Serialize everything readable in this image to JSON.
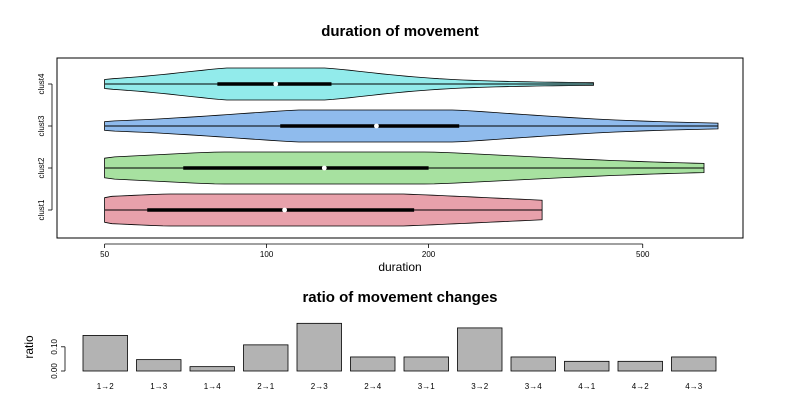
{
  "chart_data": [
    {
      "type": "violin",
      "title": "duration of movement",
      "xlabel": "duration",
      "ylabel": "",
      "xscale": "log",
      "xlim": [
        45,
        690
      ],
      "xticks": [
        50,
        100,
        200,
        500
      ],
      "grid": false,
      "categories": [
        "clust1",
        "clust2",
        "clust3",
        "clust4"
      ],
      "colors": [
        "#e8a1ab",
        "#a7e1a0",
        "#8fbbed",
        "#92ebeb"
      ],
      "series": [
        {
          "name": "clust1",
          "min": 50,
          "q1": 60,
          "median": 108,
          "q3": 188,
          "max": 325
        },
        {
          "name": "clust2",
          "min": 50,
          "q1": 70,
          "median": 128,
          "q3": 200,
          "max": 650
        },
        {
          "name": "clust3",
          "min": 50,
          "q1": 106,
          "median": 160,
          "q3": 228,
          "max": 690
        },
        {
          "name": "clust4",
          "min": 50,
          "q1": 81,
          "median": 104,
          "q3": 132,
          "max": 405
        }
      ]
    },
    {
      "type": "bar",
      "title": "ratio of movement changes",
      "xlabel": "",
      "ylabel": "ratio",
      "ylim": [
        0,
        0.2
      ],
      "yticks": [
        0.0,
        0.1
      ],
      "yticklabels": [
        "0.00",
        "0.10"
      ],
      "grid": false,
      "bar_color": "#b3b3b3",
      "categories": [
        "1→2",
        "1→3",
        "1→4",
        "2→1",
        "2→3",
        "2→4",
        "3→1",
        "3→2",
        "3→4",
        "4→1",
        "4→2",
        "4→3"
      ],
      "values": [
        0.147,
        0.047,
        0.018,
        0.108,
        0.197,
        0.058,
        0.058,
        0.178,
        0.058,
        0.04,
        0.04,
        0.058
      ]
    }
  ]
}
